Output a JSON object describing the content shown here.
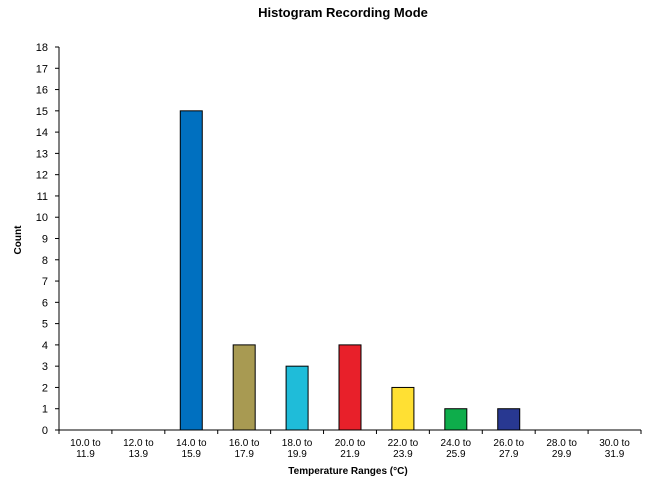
{
  "chart_data": {
    "type": "bar",
    "title": "Histogram Recording Mode",
    "xlabel": "Temperature Ranges (°C)",
    "ylabel": "Count",
    "ylim": [
      0,
      18
    ],
    "yticks": [
      0,
      1,
      2,
      3,
      4,
      5,
      6,
      7,
      8,
      9,
      10,
      11,
      12,
      13,
      14,
      15,
      16,
      17,
      18
    ],
    "categories": [
      [
        "10.0 to",
        "11.9"
      ],
      [
        "12.0 to",
        "13.9"
      ],
      [
        "14.0 to",
        "15.9"
      ],
      [
        "16.0 to",
        "17.9"
      ],
      [
        "18.0 to",
        "19.9"
      ],
      [
        "20.0 to",
        "21.9"
      ],
      [
        "22.0 to",
        "23.9"
      ],
      [
        "24.0 to",
        "25.9"
      ],
      [
        "26.0 to",
        "27.9"
      ],
      [
        "28.0 to",
        "29.9"
      ],
      [
        "30.0 to",
        "31.9"
      ]
    ],
    "values": [
      0,
      0,
      15,
      4,
      3,
      4,
      2,
      1,
      1,
      0,
      0
    ],
    "colors": [
      "#0070c0",
      "#0070c0",
      "#0070c0",
      "#a89a52",
      "#1fbcd9",
      "#e8202a",
      "#ffe033",
      "#0ead4b",
      "#283891",
      "#283891",
      "#283891"
    ],
    "grid": false,
    "legend": "none"
  }
}
